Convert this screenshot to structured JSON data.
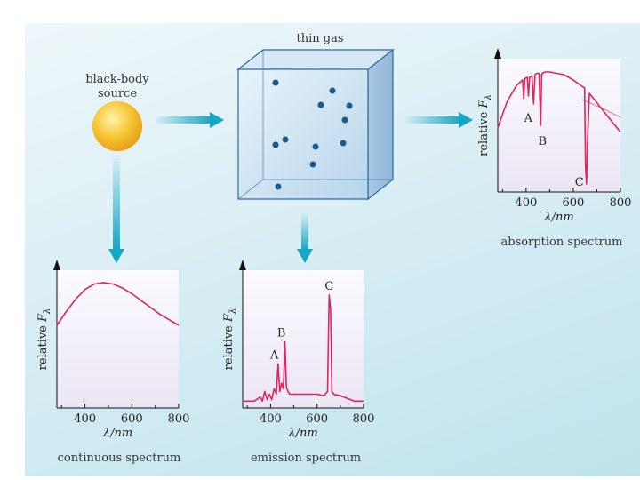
{
  "source_label_1": "black-body",
  "source_label_2": "source",
  "gas_label": "thin gas",
  "colors": {
    "curve": "#e0245e",
    "arrow": "#2bb3cf",
    "sun": "#f0b428",
    "particle": "#1d5a8c"
  },
  "icons": {
    "sun": "sun-icon",
    "gas_box": "gas-box-icon",
    "arrow": "arrow-icon"
  },
  "axis": {
    "y_label_prefix": "relative ",
    "y_label_symbol": "F",
    "y_label_sub": "λ",
    "x_label": "λ/nm",
    "ticks": [
      "400",
      "600",
      "800"
    ]
  },
  "chart_data": [
    {
      "type": "line",
      "title": "continuous spectrum",
      "xlabel": "λ/nm",
      "ylabel": "relative Fλ",
      "xlim": [
        280,
        800
      ],
      "ylim": [
        0,
        1
      ],
      "x": [
        280,
        320,
        360,
        400,
        440,
        480,
        520,
        560,
        600,
        640,
        680,
        720,
        760,
        800
      ],
      "y": [
        0.6,
        0.7,
        0.79,
        0.86,
        0.9,
        0.91,
        0.9,
        0.87,
        0.83,
        0.78,
        0.73,
        0.68,
        0.64,
        0.6
      ],
      "annotations": []
    },
    {
      "type": "line",
      "title": "emission spectrum",
      "xlabel": "λ/nm",
      "ylabel": "relative Fλ",
      "xlim": [
        280,
        800
      ],
      "ylim": [
        0,
        1
      ],
      "x": [
        285,
        330,
        355,
        365,
        375,
        385,
        395,
        405,
        415,
        425,
        432,
        440,
        448,
        455,
        462,
        468,
        475,
        482,
        490,
        520,
        560,
        600,
        630,
        645,
        652,
        658,
        664,
        672,
        700,
        760,
        800
      ],
      "y": [
        0.05,
        0.05,
        0.08,
        0.05,
        0.12,
        0.06,
        0.1,
        0.06,
        0.14,
        0.1,
        0.32,
        0.12,
        0.18,
        0.14,
        0.48,
        0.15,
        0.12,
        0.1,
        0.1,
        0.1,
        0.1,
        0.1,
        0.09,
        0.12,
        0.82,
        0.72,
        0.12,
        0.1,
        0.09,
        0.05,
        0.05
      ],
      "annotations": [
        {
          "label": "A",
          "x": 432,
          "y": 0.32
        },
        {
          "label": "B",
          "x": 462,
          "y": 0.48
        },
        {
          "label": "C",
          "x": 652,
          "y": 0.82
        }
      ]
    },
    {
      "type": "line",
      "title": "absorption spectrum",
      "xlabel": "λ/nm",
      "ylabel": "relative Fλ",
      "xlim": [
        280,
        800
      ],
      "ylim": [
        0,
        1
      ],
      "x": [
        280,
        320,
        360,
        385,
        390,
        395,
        405,
        410,
        415,
        425,
        432,
        438,
        445,
        455,
        462,
        466,
        470,
        480,
        500,
        560,
        600,
        640,
        648,
        652,
        656,
        660,
        668,
        700,
        740,
        800
      ],
      "y": [
        0.48,
        0.68,
        0.8,
        0.84,
        0.7,
        0.85,
        0.86,
        0.72,
        0.86,
        0.87,
        0.66,
        0.88,
        0.89,
        0.89,
        0.5,
        0.88,
        0.89,
        0.9,
        0.9,
        0.88,
        0.84,
        0.79,
        0.78,
        0.2,
        0.06,
        0.35,
        0.74,
        0.67,
        0.58,
        0.45
      ],
      "annotations": [
        {
          "label": "A",
          "x": 432,
          "y": 0.66
        },
        {
          "label": "B",
          "x": 462,
          "y": 0.5
        },
        {
          "label": "C",
          "x": 656,
          "y": 0.06
        }
      ]
    }
  ]
}
